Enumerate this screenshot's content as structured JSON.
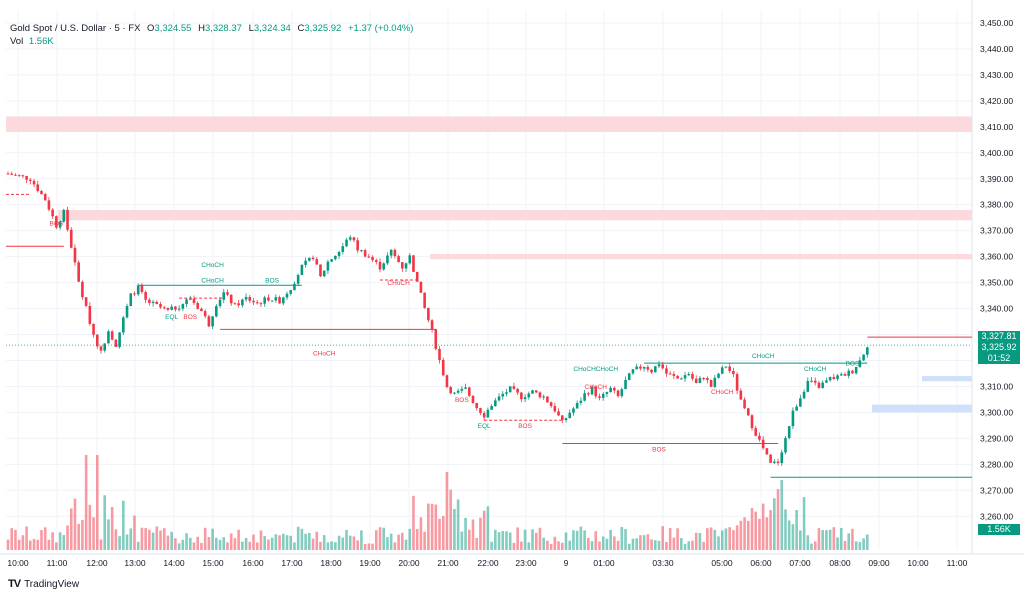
{
  "header": {
    "symbol": "Gold Spot / U.S. Dollar · 5 · FX",
    "open_label": "O",
    "open": "3,324.55",
    "high_label": "H",
    "high": "3,328.37",
    "low_label": "L",
    "low": "3,324.34",
    "close_label": "C",
    "close": "3,325.92",
    "change": "+1.37 (+0.04%)",
    "vol_label": "Vol",
    "vol": "1.56K"
  },
  "brand": {
    "name": "TradingView",
    "logo": "TV"
  },
  "colors": {
    "up": "#089981",
    "down": "#f23645",
    "zone_red": "#fcd9dc",
    "zone_blue": "#cfe0fb",
    "grid": "#f0f3fa",
    "axis_text": "#131722"
  },
  "price_tags": {
    "last": "3,327.81",
    "close": "3,325.92",
    "countdown": "01:52",
    "volume": "1.56K"
  },
  "chart_data": {
    "type": "candlestick",
    "title": "Gold Spot / U.S. Dollar · 5 · FX",
    "y_axis": {
      "min": 3247,
      "max": 3455,
      "ticks": [
        3260,
        3270,
        3280,
        3290,
        3300,
        3310,
        3320,
        3330,
        3340,
        3350,
        3360,
        3370,
        3380,
        3390,
        3400,
        3410,
        3420,
        3430,
        3440,
        3450
      ]
    },
    "y_tick_labels": [
      "3,260.00",
      "3,270.00",
      "3,280.00",
      "3,290.00",
      "3,300.00",
      "3,310.00",
      "3,320.00",
      "3,330.00",
      "3,340.00",
      "3,350.00",
      "3,360.00",
      "3,370.00",
      "3,380.00",
      "3,390.00",
      "3,400.00",
      "3,410.00",
      "3,420.00",
      "3,430.00",
      "3,440.00",
      "3,450.00"
    ],
    "x_axis": {
      "ticks": [
        "10:00",
        "11:00",
        "12:00",
        "13:00",
        "14:00",
        "15:00",
        "16:00",
        "17:00",
        "18:00",
        "19:00",
        "20:00",
        "21:00",
        "22:00",
        "23:00",
        "9",
        "01:00",
        "03:30",
        "05:00",
        "06:00",
        "07:00",
        "08:00",
        "09:00",
        "10:00",
        "11:00"
      ]
    },
    "close_path": [
      [
        0,
        3392
      ],
      [
        6,
        3390
      ],
      [
        10,
        3382
      ],
      [
        13,
        3372
      ],
      [
        15,
        3377
      ],
      [
        17,
        3364
      ],
      [
        19,
        3350
      ],
      [
        21,
        3340
      ],
      [
        23,
        3330
      ],
      [
        25,
        3323
      ],
      [
        27,
        3332
      ],
      [
        29,
        3326
      ],
      [
        31,
        3336
      ],
      [
        33,
        3345
      ],
      [
        35,
        3348
      ],
      [
        37,
        3343
      ],
      [
        40,
        3341
      ],
      [
        43,
        3339
      ],
      [
        46,
        3341
      ],
      [
        49,
        3344
      ],
      [
        52,
        3339
      ],
      [
        54,
        3334
      ],
      [
        56,
        3342
      ],
      [
        58,
        3346
      ],
      [
        61,
        3341
      ],
      [
        64,
        3344
      ],
      [
        67,
        3342
      ],
      [
        70,
        3344
      ],
      [
        73,
        3343
      ],
      [
        76,
        3348
      ],
      [
        79,
        3356
      ],
      [
        82,
        3360
      ],
      [
        84,
        3352
      ],
      [
        86,
        3358
      ],
      [
        89,
        3362
      ],
      [
        92,
        3368
      ],
      [
        94,
        3363
      ],
      [
        97,
        3360
      ],
      [
        100,
        3356
      ],
      [
        103,
        3362
      ],
      [
        106,
        3356
      ],
      [
        108,
        3360
      ],
      [
        110,
        3350
      ],
      [
        112,
        3340
      ],
      [
        114,
        3331
      ],
      [
        116,
        3320
      ],
      [
        118,
        3310
      ],
      [
        120,
        3307
      ],
      [
        123,
        3309
      ],
      [
        126,
        3302
      ],
      [
        128,
        3299
      ],
      [
        130,
        3303
      ],
      [
        133,
        3307
      ],
      [
        135,
        3309
      ],
      [
        138,
        3306
      ],
      [
        141,
        3308
      ],
      [
        144,
        3306
      ],
      [
        147,
        3301
      ],
      [
        149,
        3296
      ],
      [
        151,
        3300
      ],
      [
        153,
        3303
      ],
      [
        155,
        3307
      ],
      [
        157,
        3309
      ],
      [
        159,
        3305
      ],
      [
        162,
        3309
      ],
      [
        164,
        3306
      ],
      [
        166,
        3312
      ],
      [
        168,
        3316
      ],
      [
        171,
        3318
      ],
      [
        173,
        3316
      ],
      [
        175,
        3319
      ],
      [
        177,
        3315
      ],
      [
        180,
        3313
      ],
      [
        183,
        3315
      ],
      [
        185,
        3311
      ],
      [
        187,
        3314
      ],
      [
        189,
        3310
      ],
      [
        191,
        3315
      ],
      [
        193,
        3318
      ],
      [
        195,
        3314
      ],
      [
        197,
        3304
      ],
      [
        199,
        3298
      ],
      [
        201,
        3292
      ],
      [
        203,
        3286
      ],
      [
        205,
        3280
      ],
      [
        207,
        3281
      ],
      [
        209,
        3290
      ],
      [
        211,
        3300
      ],
      [
        213,
        3306
      ],
      [
        215,
        3312
      ],
      [
        218,
        3310
      ],
      [
        221,
        3313
      ],
      [
        224,
        3314
      ],
      [
        227,
        3316
      ],
      [
        229,
        3320
      ],
      [
        231,
        3326
      ]
    ],
    "zones": [
      {
        "color": "red",
        "low": 3408,
        "high": 3414
      },
      {
        "color": "red",
        "low": 3374,
        "high": 3378
      },
      {
        "color": "red",
        "low": 3359,
        "high": 3361
      },
      {
        "color": "blue",
        "low": 3312,
        "high": 3314
      },
      {
        "color": "blue",
        "low": 3300,
        "high": 3303
      }
    ],
    "annotations": [
      {
        "text": "BOS",
        "price": 3372,
        "bar": 13,
        "color": "red"
      },
      {
        "text": "CHoCH",
        "price": 3356,
        "bar": 55,
        "color": "green"
      },
      {
        "text": "CHoCH",
        "price": 3350,
        "bar": 55,
        "color": "green"
      },
      {
        "text": "BOS",
        "price": 3350,
        "bar": 71,
        "color": "green"
      },
      {
        "text": "EQL",
        "price": 3336,
        "bar": 44,
        "color": "green"
      },
      {
        "text": "BOS",
        "price": 3336,
        "bar": 49,
        "color": "red"
      },
      {
        "text": "CHoCH",
        "price": 3322,
        "bar": 85,
        "color": "red"
      },
      {
        "text": "CHoCH",
        "price": 3349,
        "bar": 105,
        "color": "red"
      },
      {
        "text": "CHoCH",
        "price": 3321,
        "bar": 203,
        "color": "green"
      },
      {
        "text": "CHoCH",
        "price": 3316,
        "bar": 155,
        "color": "green"
      },
      {
        "text": "CHoCH",
        "price": 3316,
        "bar": 161,
        "color": "green"
      },
      {
        "text": "CHoCH",
        "price": 3309,
        "bar": 158,
        "color": "red"
      },
      {
        "text": "CHoCH",
        "price": 3307,
        "bar": 192,
        "color": "red"
      },
      {
        "text": "CHoCH",
        "price": 3316,
        "bar": 217,
        "color": "green"
      },
      {
        "text": "BOS",
        "price": 3318,
        "bar": 227,
        "color": "green"
      },
      {
        "text": "BOS",
        "price": 3304,
        "bar": 122,
        "color": "red"
      },
      {
        "text": "EQL",
        "price": 3294,
        "bar": 128,
        "color": "green"
      },
      {
        "text": "BOS",
        "price": 3294,
        "bar": 139,
        "color": "red"
      },
      {
        "text": "BOS",
        "price": 3285,
        "bar": 175,
        "color": "red"
      }
    ],
    "lines": [
      {
        "color": "red",
        "price": 3384,
        "from_bar": 0,
        "to_bar": 6,
        "dashed": true
      },
      {
        "color": "red",
        "price": 3364,
        "from_bar": 0,
        "to_bar": 15,
        "dashed": false
      },
      {
        "color": "green",
        "price": 3349,
        "from_bar": 35,
        "to_bar": 79,
        "dashed": false
      },
      {
        "color": "red",
        "price": 3344,
        "from_bar": 46,
        "to_bar": 58,
        "dashed": true
      },
      {
        "color": "red",
        "price": 3332,
        "from_bar": 57,
        "to_bar": 115,
        "dashed": false
      },
      {
        "color": "red",
        "price": 3351,
        "from_bar": 100,
        "to_bar": 110,
        "dashed": true
      },
      {
        "color": "green",
        "price": 3319,
        "from_bar": 171,
        "to_bar": 231,
        "dashed": false
      },
      {
        "color": "red",
        "price": 3297,
        "from_bar": 128,
        "to_bar": 149,
        "dashed": true
      },
      {
        "color": "red",
        "price": 3288,
        "from_bar": 149,
        "to_bar": 207,
        "dashed": false
      },
      {
        "color": "green",
        "price": 3275,
        "from_bar": 205,
        "to_bar": 245,
        "dashed": false
      },
      {
        "color": "red",
        "price": 3329,
        "from_bar": 231,
        "to_bar": 245,
        "dashed": false
      }
    ],
    "volume": {
      "last_value": "1.56K"
    }
  }
}
